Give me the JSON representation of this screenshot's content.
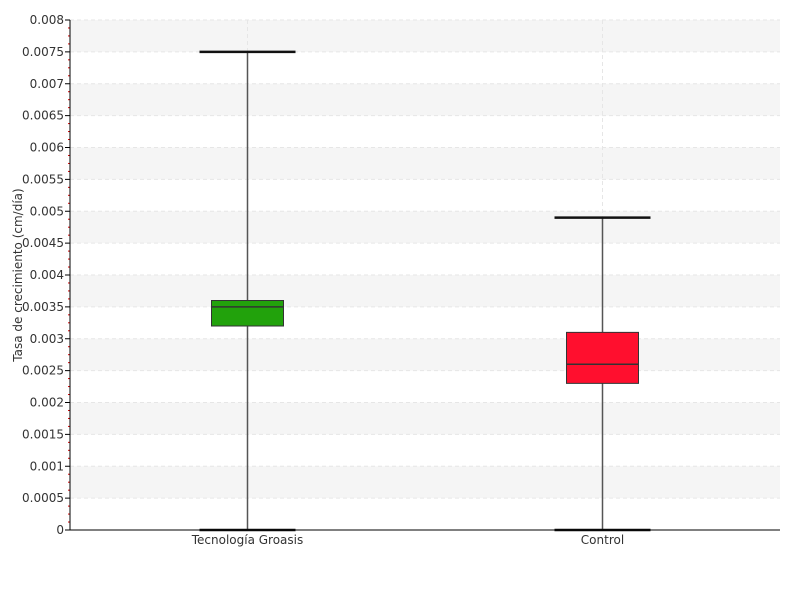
{
  "chart_data": {
    "type": "box",
    "ylabel": "Tasa de crecimiento (cm/día)",
    "xlabel": "",
    "ylim": [
      0,
      0.008
    ],
    "yticks": [
      0,
      0.0005,
      0.001,
      0.0015,
      0.002,
      0.0025,
      0.003,
      0.0035,
      0.004,
      0.0045,
      0.005,
      0.0055,
      0.006,
      0.0065,
      0.007,
      0.0075,
      0.008
    ],
    "ytick_labels": [
      "0",
      "0.0005",
      "0.001",
      "0.0015",
      "0.002",
      "0.0025",
      "0.003",
      "0.0035",
      "0.004",
      "0.0045",
      "0.005",
      "0.0055",
      "0.006",
      "0.0065",
      "0.007",
      "0.0075",
      "0.008"
    ],
    "grid": true,
    "legend": "none",
    "categories": [
      "Tecnología Groasis",
      "Control"
    ],
    "boxes": [
      {
        "category": "Tecnología Groasis",
        "min": 0.0,
        "q1": 0.0032,
        "median": 0.0035,
        "q3": 0.0036,
        "max": 0.0075,
        "color": "#22a20c"
      },
      {
        "category": "Control",
        "min": 0.0,
        "q1": 0.0023,
        "median": 0.0026,
        "q3": 0.0031,
        "max": 0.0049,
        "color": "#ff0f2e"
      }
    ]
  }
}
